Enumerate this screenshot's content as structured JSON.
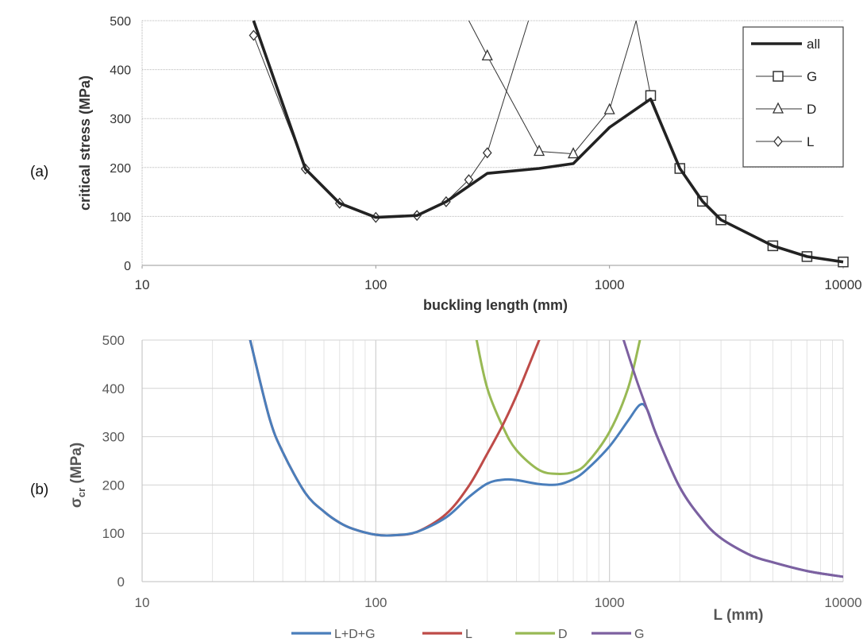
{
  "panel_labels": [
    "(a)",
    "(b)"
  ],
  "chart_data": [
    {
      "type": "line",
      "panel": "(a)",
      "xlabel": "buckling length (mm)",
      "ylabel": "critical stress (MPa)",
      "xscale": "log",
      "xlim": [
        10,
        10000
      ],
      "ylim": [
        0,
        500
      ],
      "x_ticks": [
        "10",
        "100",
        "1000",
        "10000"
      ],
      "y_ticks": [
        "0",
        "100",
        "200",
        "300",
        "400",
        "500"
      ],
      "grid": "horizontal",
      "legend_position": "top-right",
      "series": [
        {
          "name": "all",
          "color": "#222222",
          "marker": "none",
          "x": [
            30,
            50,
            70,
            100,
            150,
            200,
            300,
            500,
            700,
            1000,
            1500,
            2000,
            2500,
            3000,
            5000,
            7000,
            10000
          ],
          "y": [
            500,
            197,
            127,
            98,
            102,
            130,
            188,
            198,
            208,
            282,
            340,
            198,
            131,
            93,
            40,
            18,
            7
          ]
        },
        {
          "name": "G",
          "color": "#333333",
          "marker": "square",
          "x": [
            1300,
            1500,
            2000,
            2500,
            3000,
            5000,
            7000,
            10000
          ],
          "y": [
            500,
            347,
            198,
            131,
            93,
            40,
            18,
            7
          ]
        },
        {
          "name": "D",
          "color": "#333333",
          "marker": "triangle",
          "x": [
            250,
            300,
            500,
            700,
            1000,
            1300
          ],
          "y": [
            500,
            428,
            233,
            228,
            318,
            500
          ]
        },
        {
          "name": "L",
          "color": "#333333",
          "marker": "diamond",
          "x": [
            30,
            50,
            70,
            100,
            150,
            200,
            250,
            300,
            450
          ],
          "y": [
            470,
            197,
            127,
            98,
            102,
            130,
            175,
            230,
            500
          ]
        }
      ]
    },
    {
      "type": "line",
      "panel": "(b)",
      "xlabel": "L (mm)",
      "ylabel": "σcr (MPa)",
      "xscale": "log",
      "xlim": [
        10,
        10000
      ],
      "ylim": [
        0,
        500
      ],
      "x_ticks": [
        "10",
        "100",
        "1000",
        "10000"
      ],
      "y_ticks": [
        "0",
        "100",
        "200",
        "300",
        "400",
        "500"
      ],
      "grid": "both",
      "legend_position": "bottom",
      "series": [
        {
          "name": "L+D+G",
          "color": "#4a7ebb",
          "x": [
            29,
            35,
            40,
            50,
            60,
            70,
            80,
            100,
            120,
            150,
            200,
            250,
            300,
            350,
            400,
            500,
            600,
            700,
            800,
            1000,
            1200,
            1350,
            1450,
            1600,
            2000,
            2500,
            3000,
            4000,
            5000,
            7000,
            10000
          ],
          "y": [
            500,
            340,
            268,
            183,
            145,
            122,
            109,
            97,
            96,
            103,
            133,
            175,
            203,
            211,
            210,
            202,
            201,
            212,
            232,
            280,
            333,
            366,
            356,
            300,
            195,
            128,
            90,
            55,
            40,
            22,
            10
          ]
        },
        {
          "name": "L",
          "color": "#be4b48",
          "x": [
            29,
            35,
            40,
            50,
            60,
            70,
            80,
            100,
            120,
            150,
            200,
            250,
            300,
            350,
            400,
            450,
            500
          ],
          "y": [
            500,
            340,
            268,
            183,
            145,
            122,
            109,
            97,
            96,
            103,
            140,
            198,
            265,
            325,
            385,
            445,
            500
          ]
        },
        {
          "name": "D",
          "color": "#98b954",
          "x": [
            270,
            300,
            350,
            400,
            500,
            600,
            700,
            800,
            1000,
            1200,
            1350
          ],
          "y": [
            500,
            400,
            320,
            272,
            231,
            223,
            227,
            245,
            310,
            400,
            500
          ]
        },
        {
          "name": "G",
          "color": "#7d60a0",
          "x": [
            1150,
            1300,
            1450,
            1600,
            2000,
            2500,
            3000,
            4000,
            5000,
            7000,
            10000
          ],
          "y": [
            500,
            420,
            356,
            300,
            195,
            128,
            90,
            55,
            40,
            22,
            10
          ]
        }
      ]
    }
  ]
}
